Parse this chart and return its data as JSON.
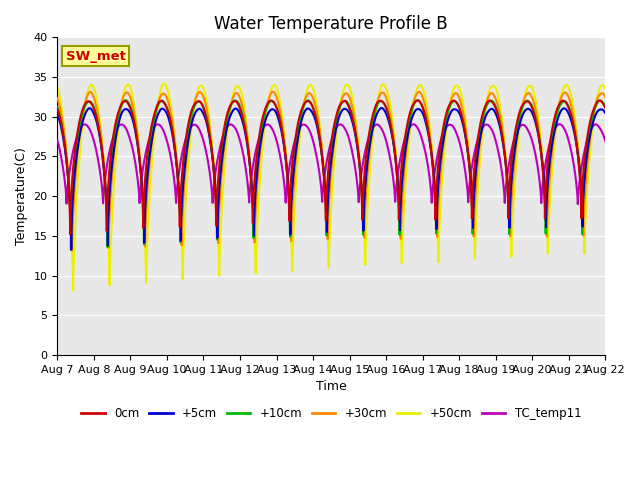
{
  "title": "Water Temperature Profile B",
  "xlabel": "Time",
  "ylabel": "Temperature(C)",
  "ylim": [
    0,
    40
  ],
  "yticks": [
    0,
    5,
    10,
    15,
    20,
    25,
    30,
    35,
    40
  ],
  "x_tick_labels": [
    "Aug 7",
    "Aug 8",
    "Aug 9",
    "Aug 10",
    "Aug 11",
    "Aug 12",
    "Aug 13",
    "Aug 14",
    "Aug 15",
    "Aug 16",
    "Aug 17",
    "Aug 18",
    "Aug 19",
    "Aug 20",
    "Aug 21",
    "Aug 22"
  ],
  "series": {
    "0cm": {
      "color": "#cc0000",
      "lw": 1.5
    },
    "+5cm": {
      "color": "#0000cc",
      "lw": 1.5
    },
    "+10cm": {
      "color": "#00bb00",
      "lw": 1.5
    },
    "+30cm": {
      "color": "#ff8800",
      "lw": 1.5
    },
    "+50cm": {
      "color": "#eeee00",
      "lw": 1.5
    },
    "TC_temp11": {
      "color": "#bb00bb",
      "lw": 1.5
    }
  },
  "annotation_text": "SW_met",
  "annotation_color": "#cc0000",
  "annotation_bg": "#ffff99",
  "annotation_border": "#999900",
  "background_color": "#e8e8e8",
  "title_fontsize": 12,
  "label_fontsize": 9,
  "tick_fontsize": 8
}
